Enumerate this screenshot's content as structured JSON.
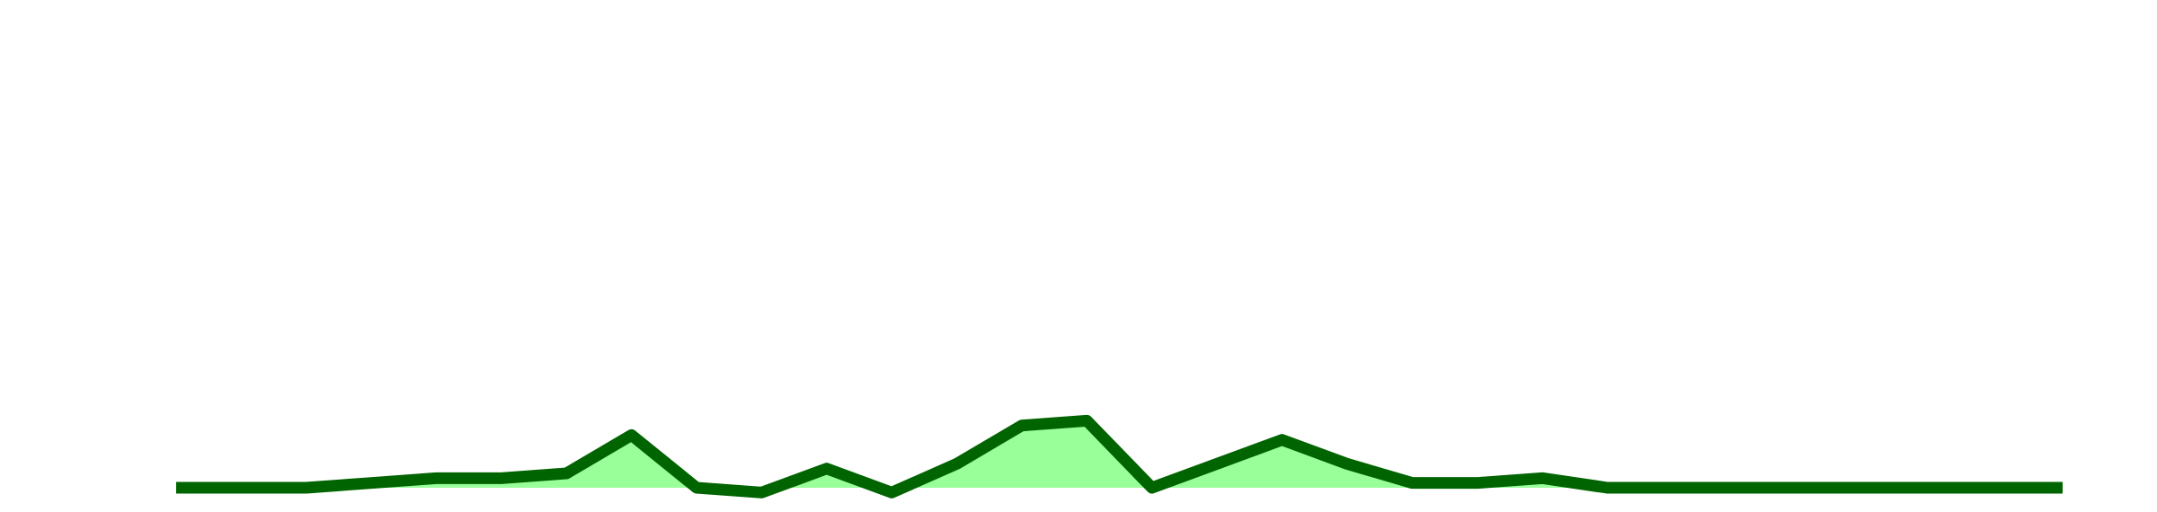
{
  "chart_data": {
    "type": "area",
    "x": [
      1,
      2,
      3,
      4,
      5,
      6,
      7,
      8,
      9,
      10,
      11,
      12,
      13,
      14,
      15,
      16,
      17,
      18,
      19,
      20,
      21,
      22,
      23,
      24,
      25,
      26,
      27,
      28,
      29,
      30
    ],
    "series": [
      {
        "values": [
          0,
          0,
          0,
          1,
          2,
          2,
          3,
          11,
          0,
          -1,
          4,
          -1,
          5,
          13,
          14,
          0,
          5,
          10,
          5,
          1,
          1,
          2,
          0,
          0,
          0,
          0,
          0,
          0,
          0,
          0
        ]
      }
    ],
    "ylim": [
      0,
      100
    ],
    "grid": false,
    "legend": "none",
    "colors": {
      "line": "#006400",
      "fill": "#99ff99",
      "background": "#ffffff"
    }
  }
}
